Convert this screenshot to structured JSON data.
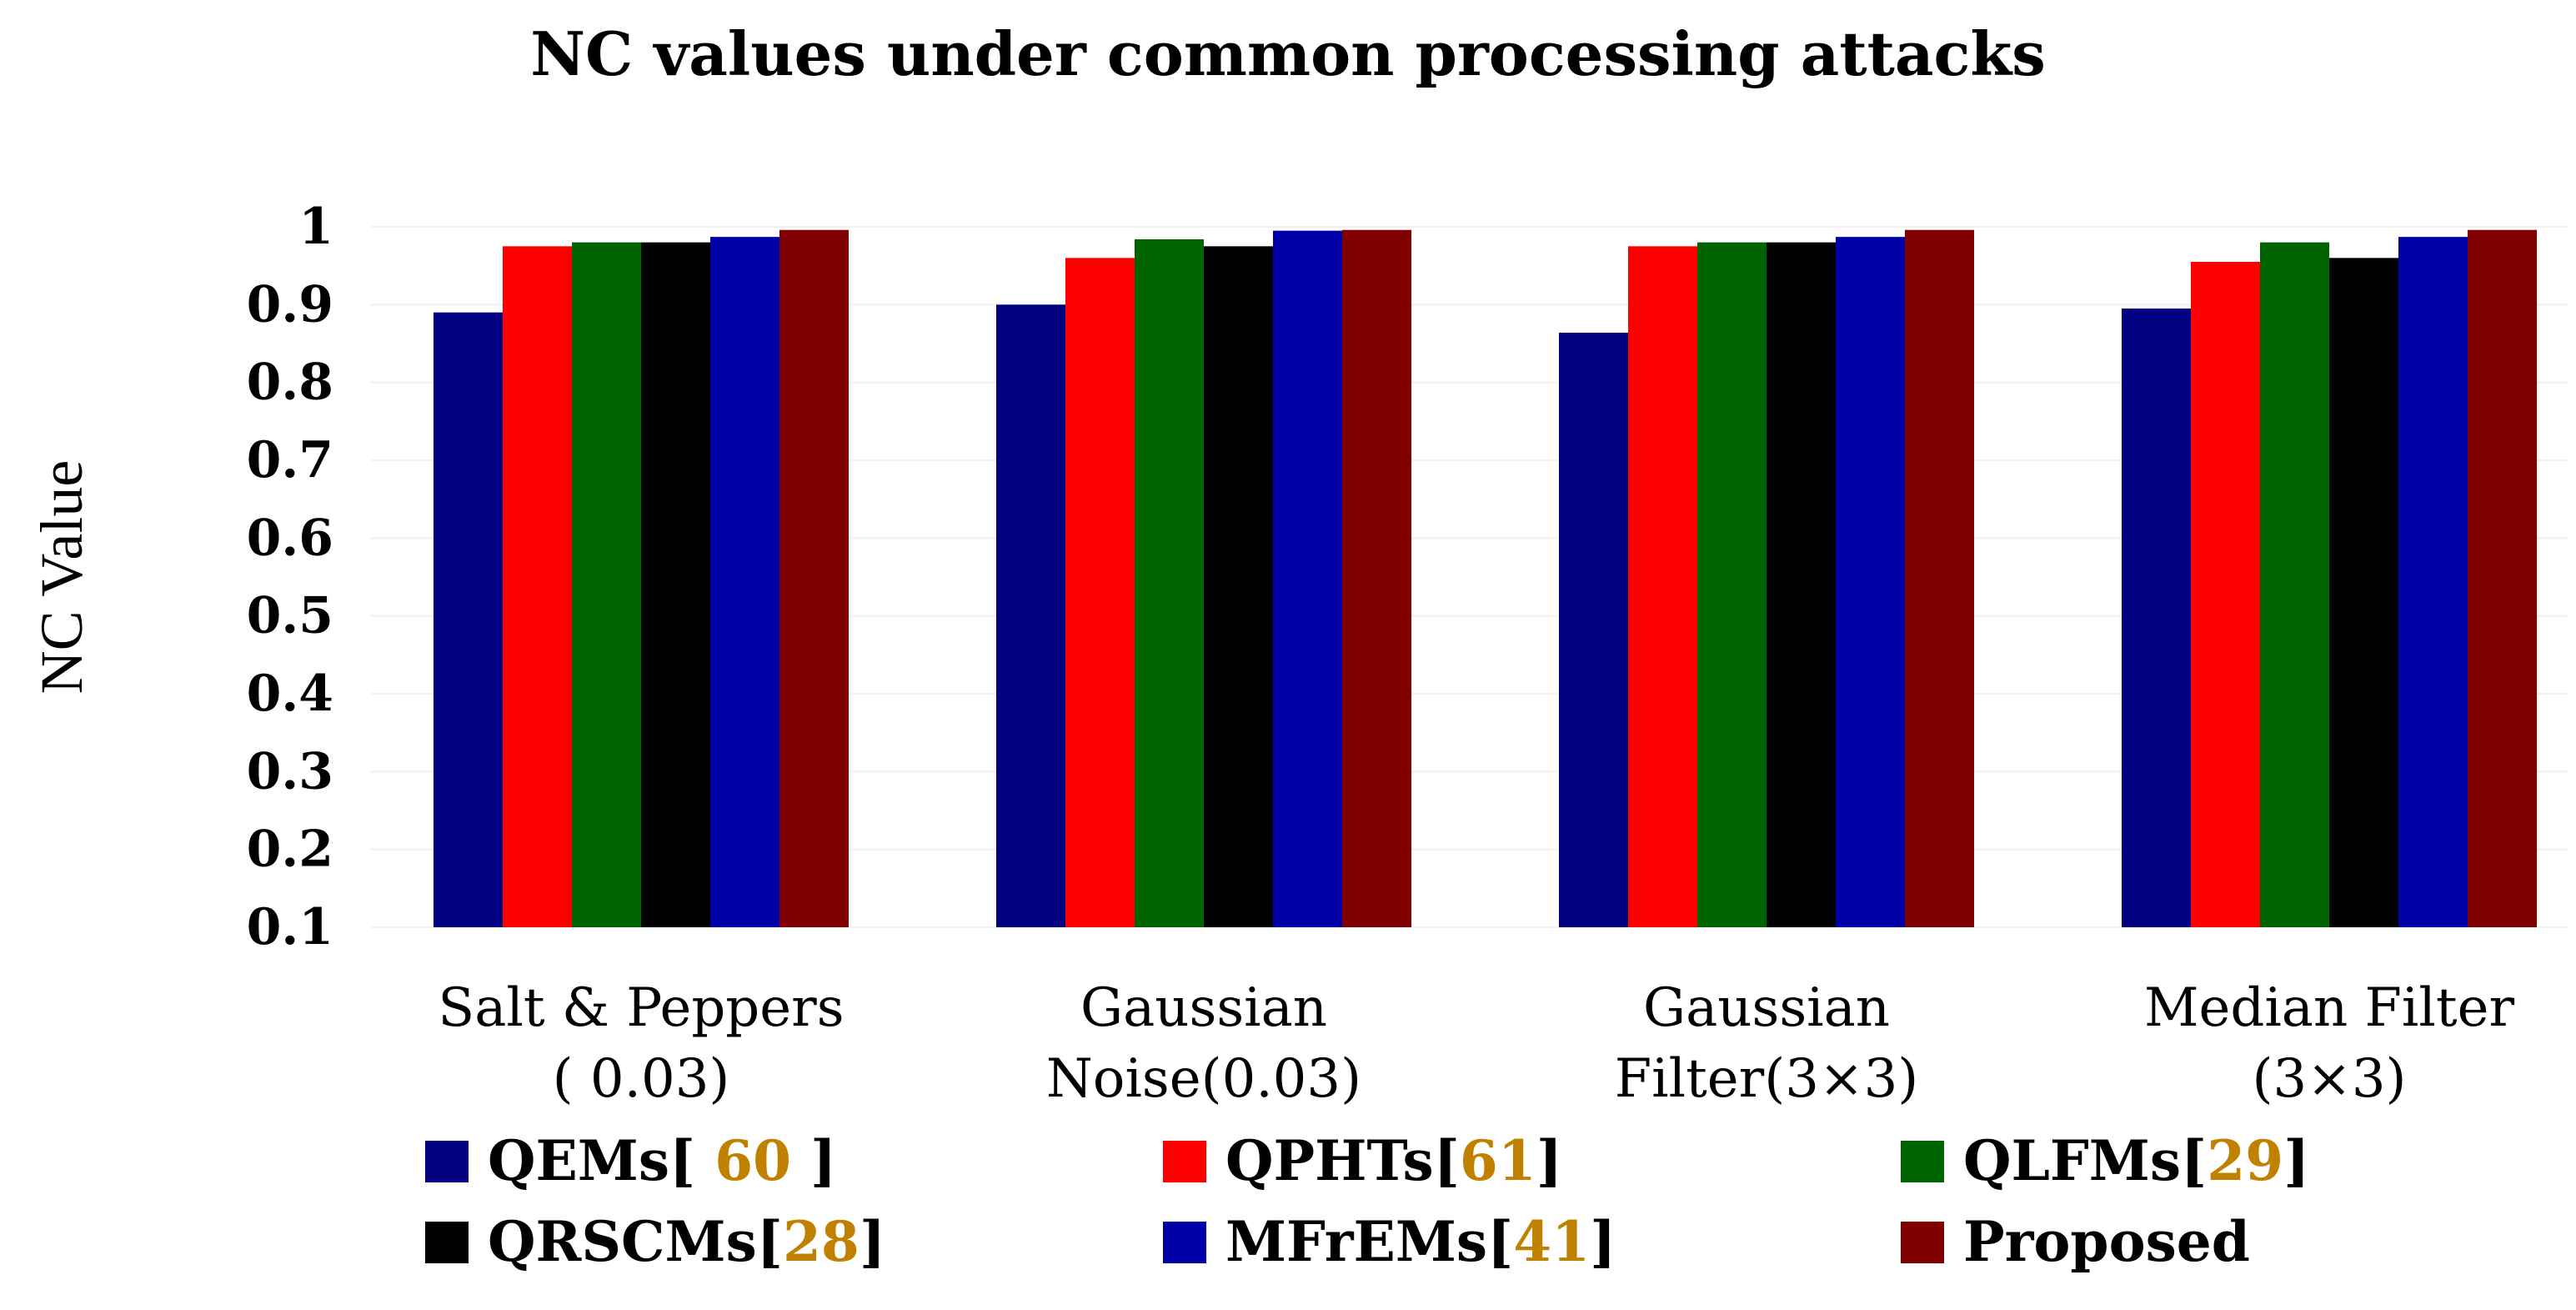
{
  "chart_data": {
    "type": "bar",
    "title": "NC values under common processing attacks",
    "ylabel": "NC Value",
    "xlabel": "",
    "ylim": [
      0.1,
      1
    ],
    "yticks": [
      "0.1",
      "0.2",
      "0.3",
      "0.4",
      "0.5",
      "0.6",
      "0.7",
      "0.8",
      "0.9",
      "1"
    ],
    "grid": true,
    "categories": [
      [
        "Salt & Peppers",
        "( 0.03)"
      ],
      [
        "Gaussian",
        "Noise(0.03)"
      ],
      [
        "Gaussian",
        "Filter(3×3)"
      ],
      [
        "Median Filter",
        "(3×3)"
      ]
    ],
    "series": [
      {
        "name": "QEMs[ 60 ]",
        "label_parts": [
          "QEMs[ ",
          "60",
          " ]"
        ],
        "color": "#000080",
        "values": [
          0.89,
          0.9,
          0.864,
          0.895
        ]
      },
      {
        "name": "QPHTs[61]",
        "label_parts": [
          "QPHTs[",
          "61",
          "]"
        ],
        "color": "#ff0000",
        "values": [
          0.975,
          0.96,
          0.975,
          0.955
        ]
      },
      {
        "name": "QLFMs[29]",
        "label_parts": [
          "QLFMs[",
          "29",
          "]"
        ],
        "color": "#006400",
        "values": [
          0.98,
          0.984,
          0.98,
          0.98
        ]
      },
      {
        "name": "QRSCMs[28]",
        "label_parts": [
          "QRSCMs[",
          "28",
          "]"
        ],
        "color": "#000000",
        "values": [
          0.98,
          0.975,
          0.98,
          0.96
        ]
      },
      {
        "name": "MFrEMs[41]",
        "label_parts": [
          "MFrEMs[",
          "41",
          "]"
        ],
        "color": "#0000a8",
        "values": [
          0.987,
          0.995,
          0.987,
          0.987
        ]
      },
      {
        "name": "Proposed",
        "label_parts": [
          "Proposed",
          "",
          ""
        ],
        "color": "#800000",
        "values": [
          0.996,
          0.996,
          0.996,
          0.996
        ]
      }
    ],
    "legend": "bottom",
    "legend_number_color": "#c08000"
  }
}
